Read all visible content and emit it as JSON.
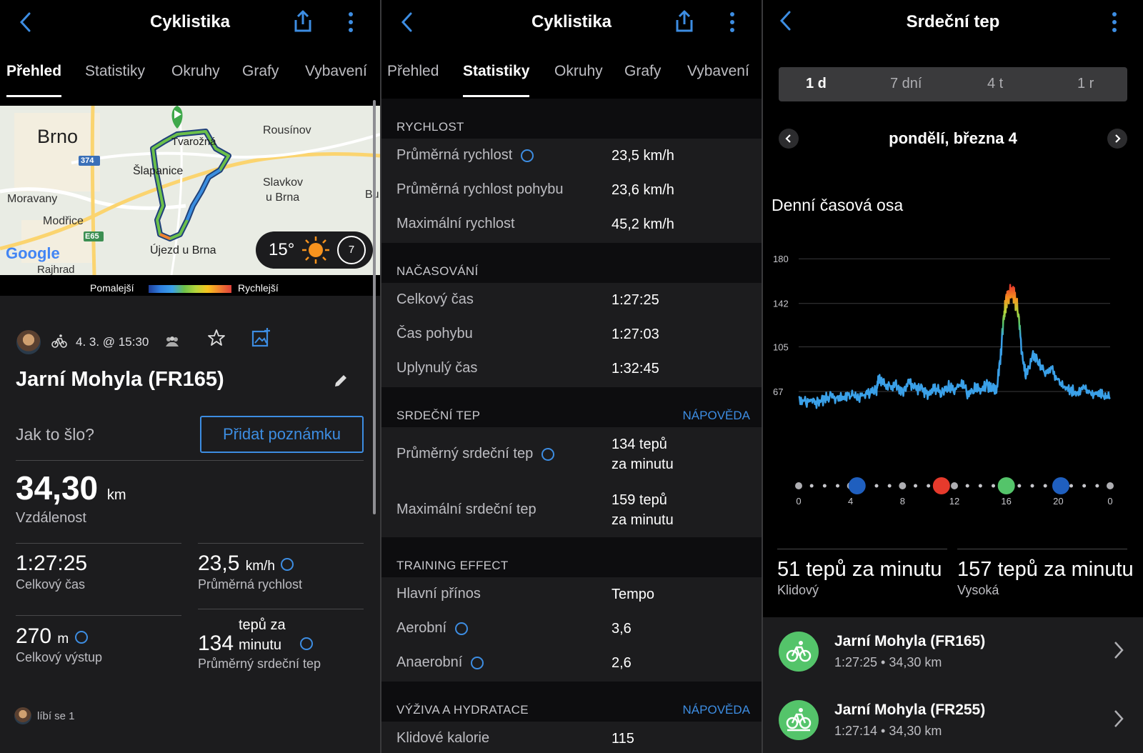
{
  "colors": {
    "accent": "#3d8de2",
    "green": "#54c46a",
    "bg": "#000000",
    "card": "#1c1c1e"
  },
  "panel1": {
    "title": "Cyklistika",
    "tabs": [
      "Přehled",
      "Statistiky",
      "Okruhy",
      "Grafy",
      "Vybavení"
    ],
    "active_tab": "Přehled",
    "map": {
      "labels": {
        "brno": "Brno",
        "tvarozna": "Tvarožná",
        "rousinov": "Rousínov",
        "slapanice": "Šlapanice",
        "slavkov": "Slavkov",
        "ubrna": "u Brna",
        "moravany": "Moravany",
        "modrice": "Modřice",
        "ujezd": "Újezd u Brna",
        "rajhrad": "Rajhrad",
        "bu": "Bu",
        "road374": "374",
        "roadE65": "E65",
        "google": "Google"
      },
      "weather_temp": "15°",
      "wind": "7"
    },
    "legend": {
      "slower": "Pomalejší",
      "faster": "Rychlejší"
    },
    "meta": {
      "date": "4. 3. @ 15:30"
    },
    "activity_name": "Jarní Mohyla (FR165)",
    "note_question": "Jak to šlo?",
    "note_button": "Přidat poznámku",
    "distance": {
      "value": "34,30",
      "unit": "km",
      "label": "Vzdálenost"
    },
    "stats": {
      "total_time": {
        "value": "1:27:25",
        "label": "Celkový čas"
      },
      "avg_speed": {
        "value": "23,5",
        "unit": "km/h",
        "label": "Průměrná rychlost"
      },
      "ascent": {
        "value": "270",
        "unit": "m",
        "label": "Celkový výstup"
      },
      "avg_hr": {
        "value": "134",
        "unit_line1": "tepů za",
        "unit_line2": "minutu",
        "label": "Průměrný srdeční tep"
      }
    },
    "likes": "líbí se 1"
  },
  "panel2": {
    "title": "Cyklistika",
    "tabs": [
      "Přehled",
      "Statistiky",
      "Okruhy",
      "Grafy",
      "Vybavení"
    ],
    "active_tab": "Statistiky",
    "help": "NÁPOVĚDA",
    "sections": {
      "speed": {
        "title": "RYCHLOST",
        "rows": [
          {
            "label": "Průměrná rychlost",
            "value": "23,5 km/h"
          },
          {
            "label": "Průměrná rychlost pohybu",
            "value": "23,6 km/h"
          },
          {
            "label": "Maximální rychlost",
            "value": "45,2 km/h"
          }
        ]
      },
      "timing": {
        "title": "NAČASOVÁNÍ",
        "rows": [
          {
            "label": "Celkový čas",
            "value": "1:27:25"
          },
          {
            "label": "Čas pohybu",
            "value": "1:27:03"
          },
          {
            "label": "Uplynulý čas",
            "value": "1:32:45"
          }
        ]
      },
      "hr": {
        "title": "SRDEČNÍ TEP",
        "rows": [
          {
            "label": "Průměrný srdeční tep",
            "value1": "134 tepů",
            "value2": "za minutu"
          },
          {
            "label": "Maximální srdeční tep",
            "value1": "159 tepů",
            "value2": "za minutu"
          }
        ]
      },
      "te": {
        "title": "TRAINING EFFECT",
        "rows": [
          {
            "label": "Hlavní přínos",
            "value": "Tempo"
          },
          {
            "label": "Aerobní",
            "value": "3,6"
          },
          {
            "label": "Anaerobní",
            "value": "2,6"
          }
        ]
      },
      "nutrition": {
        "title": "VÝŽIVA A HYDRATACE",
        "rows": [
          {
            "label": "Klidové kalorie",
            "value": "115"
          }
        ]
      }
    }
  },
  "panel3": {
    "title": "Srdeční tep",
    "segments": [
      "1 d",
      "7 dní",
      "4 t",
      "1 r"
    ],
    "active_segment": "1 d",
    "date": "pondělí, března 4",
    "section_title": "Denní časová osa",
    "resting": {
      "value": "51 tepů za minutu",
      "label": "Klidový"
    },
    "high": {
      "value": "157 tepů za minutu",
      "label": "Vysoká"
    },
    "activities": [
      {
        "name": "Jarní Mohyla (FR165)",
        "sub": "1:27:25 • 34,30 km"
      },
      {
        "name": "Jarní Mohyla (FR255)",
        "sub": "1:27:14 • 34,30 km"
      }
    ]
  },
  "chart_data": {
    "type": "line",
    "title": "Denní časová osa",
    "xlabel": "",
    "ylabel": "",
    "yticks": [
      67,
      105,
      142,
      180
    ],
    "xticks": [
      "0",
      "4",
      "8",
      "12",
      "16",
      "20",
      "0"
    ],
    "xlim": [
      0,
      24
    ],
    "ylim": [
      50,
      185
    ],
    "grid": true,
    "series": [
      {
        "x": [
          0,
          0.5,
          1,
          1.5,
          2,
          2.5,
          3,
          3.5,
          4,
          4.5,
          5,
          5.5,
          6,
          6.2,
          6.5,
          7,
          7.5,
          8,
          8.5,
          9,
          9.5,
          10,
          10.5,
          11,
          11.5,
          12,
          12.5,
          13,
          13.5,
          14,
          14.5,
          15,
          15.2,
          15.5,
          15.8,
          16,
          16.3,
          16.6,
          16.9,
          17.2,
          17.5,
          18,
          18.5,
          19,
          19.5,
          20,
          20.5,
          21,
          21.5,
          22,
          22.5,
          23,
          23.5,
          24
        ],
        "y": [
          62,
          58,
          60,
          57,
          61,
          63,
          60,
          62,
          66,
          62,
          64,
          66,
          68,
          80,
          74,
          70,
          72,
          66,
          74,
          70,
          68,
          64,
          70,
          66,
          72,
          68,
          74,
          66,
          70,
          68,
          72,
          70,
          66,
          90,
          130,
          145,
          150,
          148,
          135,
          102,
          80,
          98,
          92,
          84,
          88,
          74,
          70,
          68,
          66,
          70,
          64,
          66,
          64,
          62
        ]
      }
    ]
  }
}
